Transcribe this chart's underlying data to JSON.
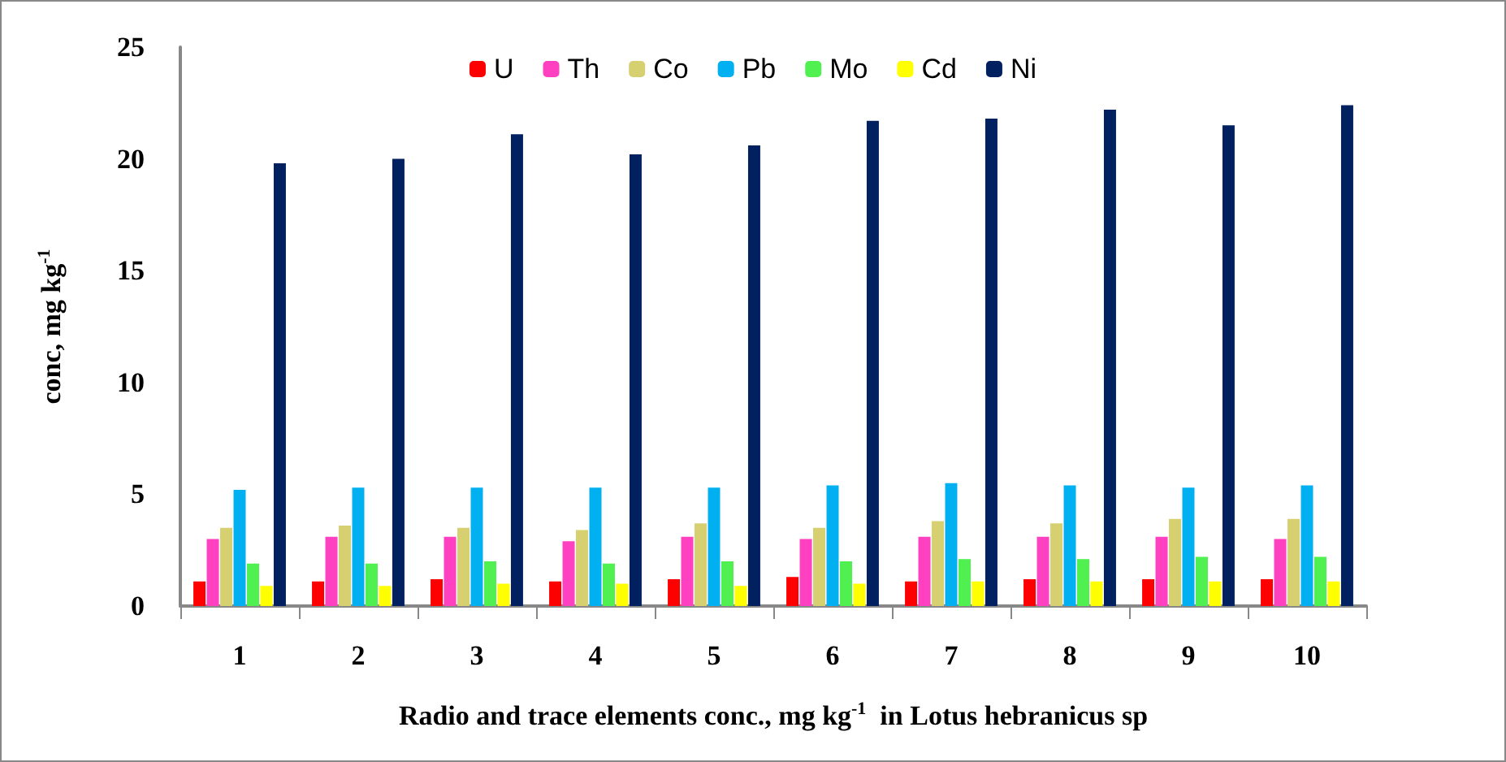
{
  "chart_data": {
    "type": "bar",
    "xlabel": "Radio and trace elements conc., mg kg$^{-1}$  in Lotus hebranicus sp",
    "ylabel": "conc, mg kg$^{-1}$",
    "categories": [
      "1",
      "2",
      "3",
      "4",
      "5",
      "6",
      "7",
      "8",
      "9",
      "10"
    ],
    "series": [
      {
        "name": "U",
        "color": "#ff0000",
        "values": [
          1.1,
          1.1,
          1.2,
          1.1,
          1.2,
          1.3,
          1.1,
          1.2,
          1.2,
          1.2
        ]
      },
      {
        "name": "Th",
        "color": "#ff40c0",
        "values": [
          3.0,
          3.1,
          3.1,
          2.9,
          3.1,
          3.0,
          3.1,
          3.1,
          3.1,
          3.0
        ]
      },
      {
        "name": "Co",
        "color": "#d6d070",
        "values": [
          3.5,
          3.6,
          3.5,
          3.4,
          3.7,
          3.5,
          3.8,
          3.7,
          3.9,
          3.9
        ]
      },
      {
        "name": "Pb",
        "color": "#00b0f0",
        "values": [
          5.2,
          5.3,
          5.3,
          5.3,
          5.3,
          5.4,
          5.5,
          5.4,
          5.3,
          5.4
        ]
      },
      {
        "name": "Mo",
        "color": "#50f050",
        "values": [
          1.9,
          1.9,
          2.0,
          1.9,
          2.0,
          2.0,
          2.1,
          2.1,
          2.2,
          2.2
        ]
      },
      {
        "name": "Cd",
        "color": "#ffff00",
        "values": [
          0.9,
          0.9,
          1.0,
          1.0,
          0.9,
          1.0,
          1.1,
          1.1,
          1.1,
          1.1
        ]
      },
      {
        "name": "Ni",
        "color": "#002060",
        "values": [
          19.8,
          20.0,
          21.1,
          20.2,
          20.6,
          21.7,
          21.8,
          22.2,
          21.5,
          22.4
        ]
      }
    ],
    "ylim": [
      0,
      25
    ],
    "yticks": [
      0,
      5,
      10,
      15,
      20,
      25
    ],
    "grid": false,
    "legend": "top"
  }
}
